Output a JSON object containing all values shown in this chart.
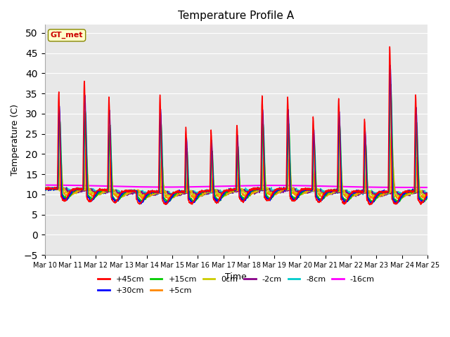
{
  "title": "Temperature Profile A",
  "xlabel": "Time",
  "ylabel": "Temperature (C)",
  "ylim": [
    -5,
    52
  ],
  "yticks": [
    -5,
    0,
    5,
    10,
    15,
    20,
    25,
    30,
    35,
    40,
    45,
    50
  ],
  "series": [
    {
      "label": "+45cm",
      "color": "#ff0000",
      "lw": 1.0
    },
    {
      "label": "+30cm",
      "color": "#0000ff",
      "lw": 1.0
    },
    {
      "label": "+15cm",
      "color": "#00cc00",
      "lw": 1.0
    },
    {
      "label": "+5cm",
      "color": "#ff8800",
      "lw": 1.0
    },
    {
      "label": "0cm",
      "color": "#cccc00",
      "lw": 1.0
    },
    {
      "label": "-2cm",
      "color": "#880088",
      "lw": 1.0
    },
    {
      "label": "-8cm",
      "color": "#00cccc",
      "lw": 1.0
    },
    {
      "label": "-16cm",
      "color": "#ff00ff",
      "lw": 1.5
    }
  ],
  "annotation_text": "GT_met",
  "annotation_color": "#cc0000",
  "annotation_bg": "#ffffcc",
  "background_color": "#e8e8e8",
  "fig_bg": "#ffffff",
  "grid_color": "#ffffff",
  "n_days": 15,
  "start_day": 10,
  "spike_amplitudes": [
    35,
    38,
    34,
    2,
    35,
    27,
    26,
    27,
    34,
    34,
    29,
    34,
    29,
    47,
    35
  ],
  "spike_times": [
    0.55,
    0.55,
    0.52,
    0.5,
    0.52,
    0.53,
    0.52,
    0.53,
    0.52,
    0.52,
    0.52,
    0.52,
    0.53,
    0.52,
    0.53
  ],
  "night_base": 11.0
}
